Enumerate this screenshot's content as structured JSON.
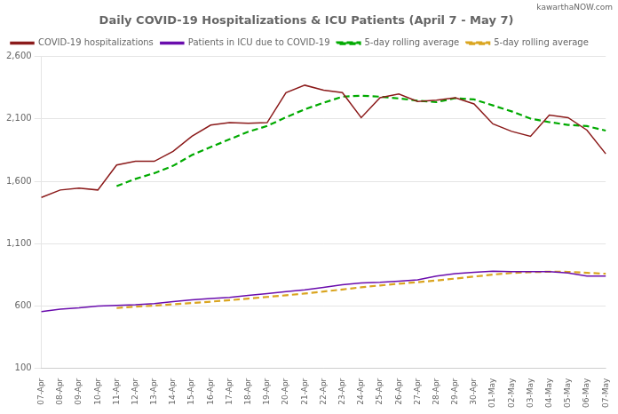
{
  "chart_data": {
    "type": "line",
    "title": "Daily COVID-19 Hospitalizations & ICU Patients (April 7 - May 7)",
    "annotations": [
      "kawarthaNOW.com"
    ],
    "categories": [
      "07-Apr",
      "08-Apr",
      "09-Apr",
      "10-Apr",
      "11-Apr",
      "12-Apr",
      "13-Apr",
      "14-Apr",
      "15-Apr",
      "16-Apr",
      "17-Apr",
      "18-Apr",
      "19-Apr",
      "20-Apr",
      "21-Apr",
      "22-Apr",
      "23-Apr",
      "24-Apr",
      "25-Apr",
      "26-Apr",
      "27-Apr",
      "28-Apr",
      "29-Apr",
      "30-Apr",
      "01-May",
      "02-May",
      "03-May",
      "04-May",
      "05-May",
      "06-May",
      "07-May"
    ],
    "series": [
      {
        "name": "COVID-19 hospitalizations",
        "color": "#8B1A1A",
        "line_style": "solid",
        "values": [
          1470,
          1530,
          1545,
          1530,
          1730,
          1760,
          1760,
          1840,
          1960,
          2050,
          2070,
          2065,
          2070,
          2310,
          2370,
          2330,
          2310,
          2110,
          2270,
          2300,
          2240,
          2250,
          2270,
          2220,
          2060,
          2000,
          1960,
          2130,
          2110,
          2010,
          1820
        ]
      },
      {
        "name": "Patients in ICU due to COVID-19",
        "color": "#6A0DAD",
        "line_style": "solid",
        "values": [
          555,
          575,
          585,
          600,
          605,
          610,
          620,
          635,
          650,
          660,
          670,
          685,
          700,
          715,
          730,
          750,
          770,
          785,
          790,
          800,
          810,
          840,
          860,
          870,
          880,
          875,
          875,
          875,
          865,
          840,
          840
        ]
      },
      {
        "name": "5-day rolling average",
        "color": "#00AA00",
        "line_style": "dashed",
        "values": [
          null,
          null,
          null,
          null,
          1561,
          1619,
          1665,
          1724,
          1810,
          1874,
          1936,
          1997,
          2043,
          2113,
          2177,
          2229,
          2278,
          2286,
          2278,
          2264,
          2246,
          2234,
          2266,
          2256,
          2208,
          2160,
          2102,
          2074,
          2052,
          2042,
          2006
        ]
      },
      {
        "name": "5-day rolling average",
        "color": "#DAA520",
        "line_style": "dashed",
        "values": [
          null,
          null,
          null,
          null,
          584,
          595,
          604,
          614,
          624,
          635,
          647,
          660,
          673,
          686,
          700,
          716,
          733,
          750,
          765,
          779,
          791,
          805,
          820,
          836,
          852,
          865,
          872,
          875,
          874,
          866,
          859
        ]
      }
    ],
    "ylim": [
      100,
      2600
    ],
    "yticks": [
      100,
      600,
      {
        "value": 1100,
        "label": "1,100"
      },
      {
        "value": 1600,
        "label": "1,600"
      },
      {
        "value": 2100,
        "label": "2,100"
      },
      {
        "value": 2600,
        "label": "2,600"
      }
    ],
    "grid": true,
    "legend": "upper left"
  }
}
